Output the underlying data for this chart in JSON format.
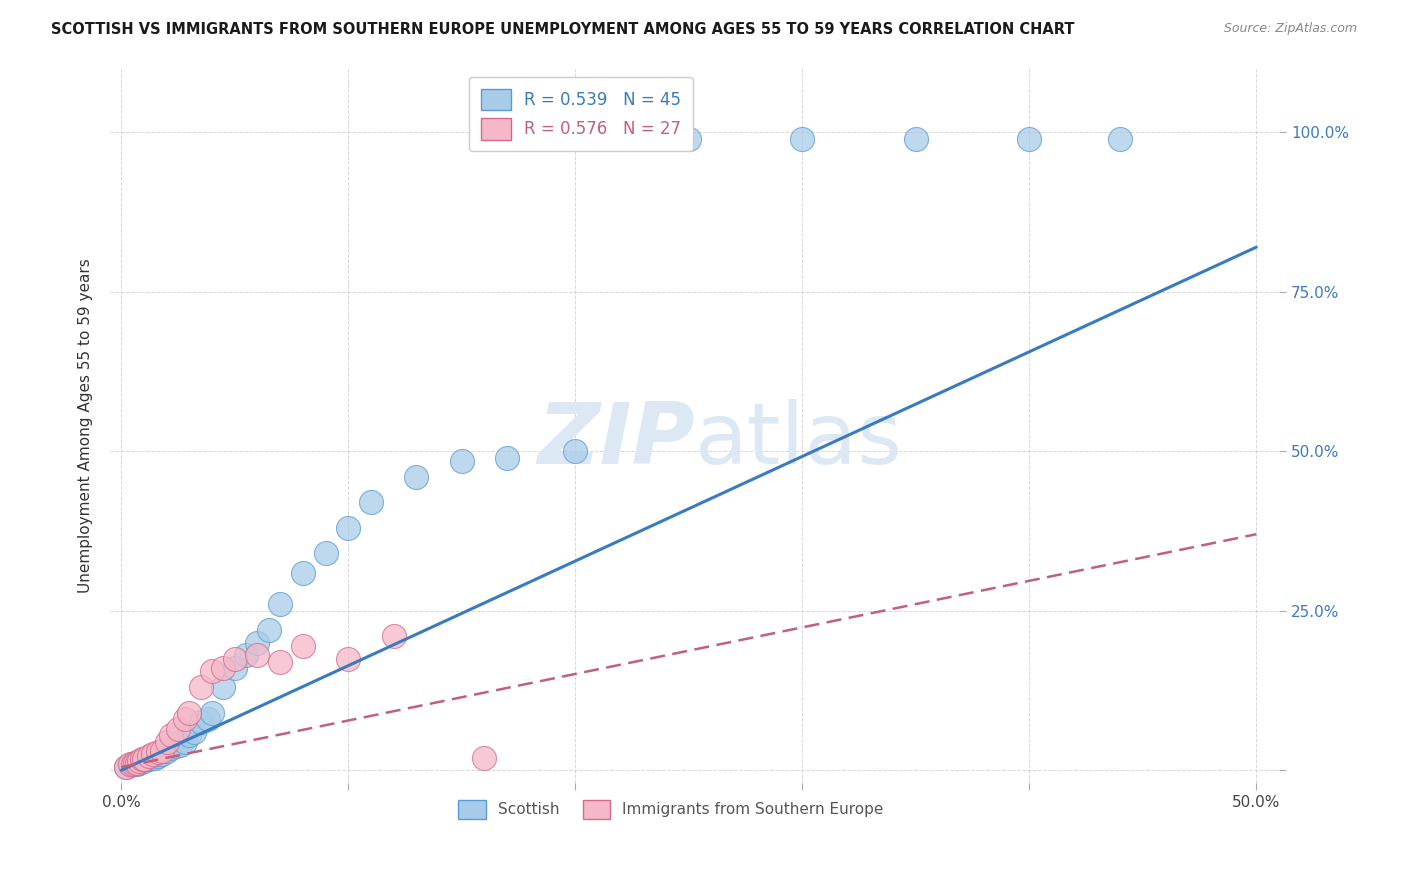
{
  "title": "SCOTTISH VS IMMIGRANTS FROM SOUTHERN EUROPE UNEMPLOYMENT AMONG AGES 55 TO 59 YEARS CORRELATION CHART",
  "source": "Source: ZipAtlas.com",
  "ylabel": "Unemployment Among Ages 55 to 59 years",
  "legend_blue_R": "R = 0.539",
  "legend_blue_N": "N = 45",
  "legend_pink_R": "R = 0.576",
  "legend_pink_N": "N = 27",
  "legend_label_blue": "Scottish",
  "legend_label_pink": "Immigrants from Southern Europe",
  "blue_color": "#a8cce8",
  "blue_edge_color": "#5b9bd5",
  "pink_color": "#f4b8c8",
  "pink_edge_color": "#d4698a",
  "blue_line_color": "#3a7abf",
  "pink_line_color": "#c0607a",
  "watermark_color": "#dce9f5",
  "blue_scatter_x": [
    0.002,
    0.004,
    0.005,
    0.006,
    0.007,
    0.008,
    0.009,
    0.01,
    0.011,
    0.012,
    0.013,
    0.014,
    0.015,
    0.016,
    0.017,
    0.018,
    0.02,
    0.022,
    0.024,
    0.026,
    0.028,
    0.03,
    0.032,
    0.035,
    0.038,
    0.04,
    0.045,
    0.05,
    0.055,
    0.06,
    0.065,
    0.07,
    0.08,
    0.09,
    0.1,
    0.11,
    0.13,
    0.15,
    0.17,
    0.2,
    0.25,
    0.3,
    0.35,
    0.4,
    0.44
  ],
  "blue_scatter_y": [
    0.005,
    0.008,
    0.01,
    0.012,
    0.01,
    0.012,
    0.015,
    0.015,
    0.018,
    0.018,
    0.02,
    0.022,
    0.02,
    0.022,
    0.025,
    0.025,
    0.03,
    0.035,
    0.038,
    0.04,
    0.045,
    0.055,
    0.06,
    0.075,
    0.08,
    0.09,
    0.13,
    0.16,
    0.18,
    0.2,
    0.22,
    0.26,
    0.31,
    0.34,
    0.38,
    0.42,
    0.46,
    0.485,
    0.49,
    0.5,
    0.99,
    0.99,
    0.99,
    0.99,
    0.99
  ],
  "pink_scatter_x": [
    0.002,
    0.004,
    0.005,
    0.006,
    0.007,
    0.008,
    0.009,
    0.01,
    0.012,
    0.014,
    0.016,
    0.018,
    0.02,
    0.022,
    0.025,
    0.028,
    0.03,
    0.035,
    0.04,
    0.045,
    0.05,
    0.06,
    0.07,
    0.08,
    0.1,
    0.12,
    0.16
  ],
  "pink_scatter_y": [
    0.005,
    0.01,
    0.01,
    0.012,
    0.012,
    0.015,
    0.018,
    0.018,
    0.022,
    0.025,
    0.028,
    0.03,
    0.045,
    0.055,
    0.065,
    0.08,
    0.09,
    0.13,
    0.155,
    0.16,
    0.175,
    0.18,
    0.17,
    0.195,
    0.175,
    0.21,
    0.02
  ],
  "blue_line_x": [
    0.0,
    0.5
  ],
  "blue_line_y": [
    0.0,
    0.82
  ],
  "pink_line_x": [
    0.0,
    0.5
  ],
  "pink_line_y": [
    0.005,
    0.37
  ],
  "xlim": [
    -0.005,
    0.51
  ],
  "ylim": [
    -0.02,
    1.1
  ],
  "xticks": [
    0.0,
    0.1,
    0.2,
    0.3,
    0.4,
    0.5
  ],
  "yticks": [
    0.0,
    0.25,
    0.5,
    0.75,
    1.0
  ],
  "figsize": [
    14.06,
    8.92
  ],
  "dpi": 100
}
